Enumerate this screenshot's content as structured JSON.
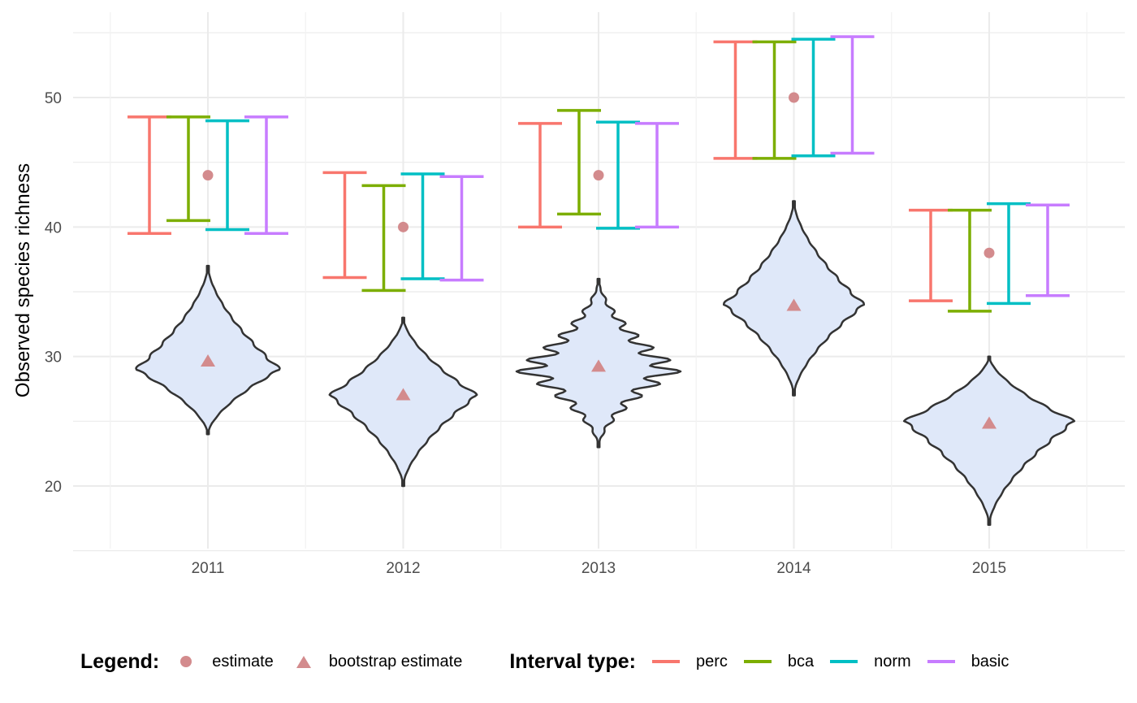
{
  "chart_data": {
    "type": "violin+errorbar",
    "title": "",
    "xlabel": "",
    "ylabel": "Observed species richness",
    "categories": [
      "2011",
      "2012",
      "2013",
      "2014",
      "2015"
    ],
    "yticks": [
      20,
      30,
      40,
      50
    ],
    "ylim": [
      15,
      56.5
    ],
    "grid": true,
    "legend_position": "bottom",
    "estimate": [
      44,
      40,
      44,
      50,
      38
    ],
    "bootstrap_estimate": [
      29.6,
      27.0,
      29.2,
      33.9,
      24.8
    ],
    "intervals": [
      {
        "name": "perc",
        "color": "#F8766D",
        "lower": [
          39.5,
          36.1,
          40.0,
          45.3,
          34.3
        ],
        "upper": [
          48.5,
          44.2,
          48.0,
          54.3,
          41.3
        ]
      },
      {
        "name": "bca",
        "color": "#7CAE00",
        "lower": [
          40.5,
          35.1,
          41.0,
          45.3,
          33.5
        ],
        "upper": [
          48.5,
          43.2,
          49.0,
          54.3,
          41.3
        ]
      },
      {
        "name": "norm",
        "color": "#00BFC4",
        "lower": [
          39.8,
          36.0,
          39.9,
          45.5,
          34.1
        ],
        "upper": [
          48.2,
          44.1,
          48.1,
          54.5,
          41.8
        ]
      },
      {
        "name": "basic",
        "color": "#C77CFF",
        "lower": [
          39.5,
          35.9,
          40.0,
          45.7,
          34.7
        ],
        "upper": [
          48.5,
          43.9,
          48.0,
          54.7,
          41.7
        ]
      }
    ],
    "violins": [
      {
        "category": "2011",
        "min": 24,
        "max": 37,
        "mode": 29,
        "half_width": 0.38,
        "style": "smooth"
      },
      {
        "category": "2012",
        "min": 20,
        "max": 33,
        "mode": 27,
        "half_width": 0.39,
        "style": "smooth"
      },
      {
        "category": "2013",
        "min": 23,
        "max": 36,
        "mode": 29,
        "half_width": 0.44,
        "style": "wavy"
      },
      {
        "category": "2014",
        "min": 27,
        "max": 42,
        "mode": 34,
        "half_width": 0.37,
        "style": "smooth"
      },
      {
        "category": "2015",
        "min": 17,
        "max": 30,
        "mode": 25,
        "half_width": 0.45,
        "style": "smooth"
      }
    ],
    "violin_fill": "#dfe8f9",
    "violin_stroke": "#333333",
    "point_color": "#d38b8d"
  },
  "legend": {
    "points_title": "Legend:",
    "points": [
      {
        "label": "estimate",
        "shape": "circle"
      },
      {
        "label": "bootstrap estimate",
        "shape": "triangle"
      }
    ],
    "intervals_title": "Interval type:",
    "intervals": [
      {
        "label": "perc",
        "color": "#F8766D"
      },
      {
        "label": "bca",
        "color": "#7CAE00"
      },
      {
        "label": "norm",
        "color": "#00BFC4"
      },
      {
        "label": "basic",
        "color": "#C77CFF"
      }
    ]
  }
}
